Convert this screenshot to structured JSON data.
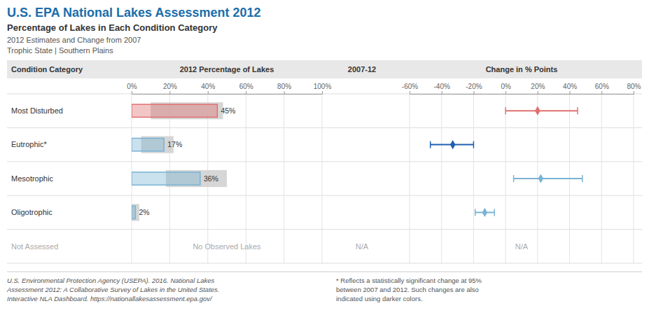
{
  "chart_data": [
    {
      "type": "bar",
      "orientation": "horizontal",
      "title": "U.S. EPA National Lakes Assessment 2012",
      "subtitle": [
        "Percentage of Lakes in Each Condition Category",
        "2012 Estimates and Change from 2007",
        "Trophic State | Southern Plains"
      ],
      "ylabel": "Condition Category",
      "xlabel": "2012 Percentage of Lakes",
      "categories": [
        "Most Disturbed",
        "Eutrophic*",
        "Mesotrophic",
        "Oligotrophic",
        "Not Assessed"
      ],
      "values": [
        45,
        17,
        36,
        2,
        null
      ],
      "value_labels": [
        "45%",
        "17%",
        "36%",
        "2%",
        null
      ],
      "ci": [
        [
          10,
          48
        ],
        [
          5,
          22
        ],
        [
          18,
          50
        ],
        [
          0,
          4
        ],
        null
      ],
      "colors": [
        "#e07070",
        "#7ab3d4",
        "#7ab3d4",
        "#7ab3d4",
        null
      ],
      "xlim": [
        0,
        100
      ],
      "xticks": [
        {
          "value": 0,
          "label": "0%"
        },
        {
          "value": 20,
          "label": "20%"
        },
        {
          "value": 40,
          "label": "40%"
        },
        {
          "value": 60,
          "label": "60%"
        },
        {
          "value": 80,
          "label": "80%"
        },
        {
          "value": 100,
          "label": "100%"
        }
      ],
      "grid": true,
      "data_labels": true,
      "annotations": [
        {
          "text": "No Observed Lakes",
          "category": "Not Assessed"
        },
        {
          "text": [
            "U.S. Environmental Protection Agency (USEPA). 2016. National Lakes",
            "Assessment 2012: A Collaborative Survey of Lakes in the United States.",
            "Interactive NLA Dashboard. https://nationallakesassessment.epa.gov/"
          ]
        },
        {
          "text": [
            "* Reflects a statistically significant change at 95%",
            "between 2007 and 2012. Such changes are also",
            "indicated using darker colors."
          ]
        }
      ]
    },
    {
      "type": "dot",
      "orientation": "horizontal",
      "xlabel": "Change in % Points",
      "values": [
        20,
        -33,
        22,
        -13,
        null
      ],
      "lo": [
        0,
        -47,
        5,
        -19,
        null
      ],
      "hi": [
        45,
        -20,
        48,
        -7,
        null
      ],
      "colors": [
        "#e07070",
        "#2060b0",
        "#7ab3d4",
        "#7ab3d4",
        null
      ],
      "xlim": [
        -60,
        80
      ],
      "xticks": [
        {
          "value": -60,
          "label": "-60%"
        },
        {
          "value": -40,
          "label": "-40%"
        },
        {
          "value": -20,
          "label": "-20%"
        },
        {
          "value": 0,
          "label": "0%"
        },
        {
          "value": 20,
          "label": "20%"
        },
        {
          "value": 40,
          "label": "40%"
        },
        {
          "value": 60,
          "label": "60%"
        },
        {
          "value": 80,
          "label": "80%"
        }
      ],
      "grid": true,
      "annotations": [
        {
          "text": "N/A",
          "category": "Not Assessed"
        }
      ]
    },
    {
      "type": "text",
      "title": "2007-12",
      "annotations": [
        {
          "text": "N/A",
          "category": "Not Assessed"
        }
      ]
    }
  ]
}
